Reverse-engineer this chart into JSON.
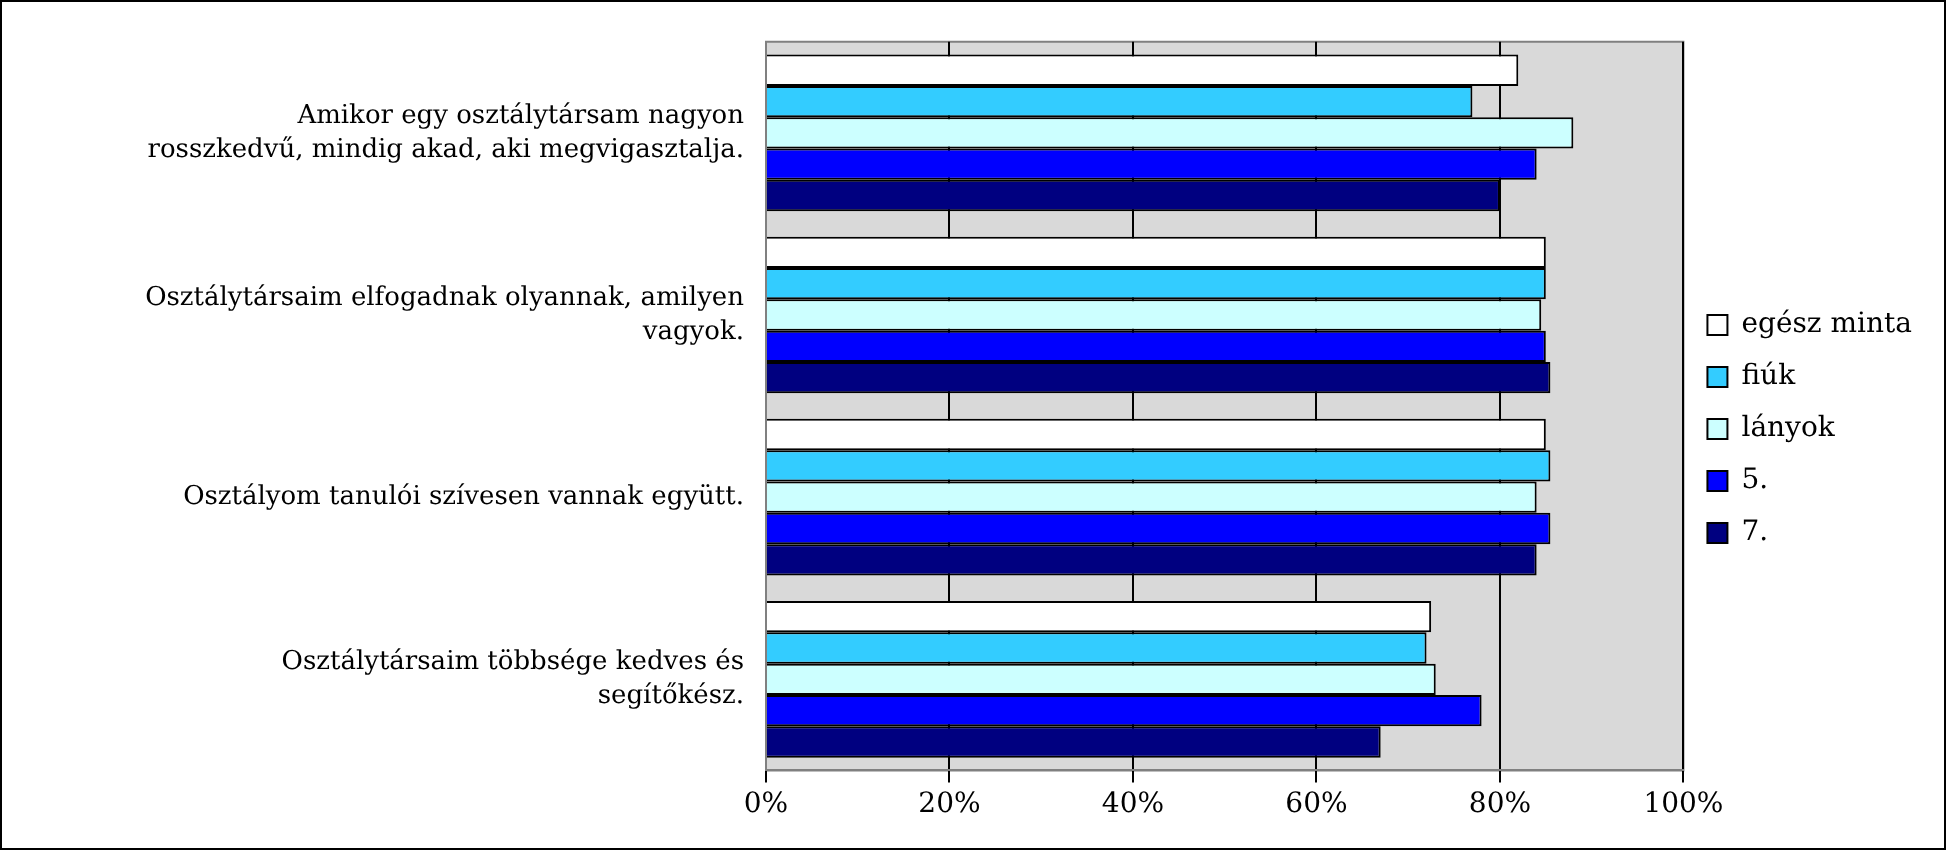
{
  "chart_data": {
    "type": "bar",
    "orientation": "horizontal",
    "categories": [
      "Amikor egy osztálytársam nagyon rosszkedvű, mindig akad, aki megvigasztalja.",
      "Osztálytársaim elfogadnak olyannak, amilyen vagyok.",
      "Osztályom tanulói szívesen vannak együtt.",
      "Osztálytársaim többsége kedves és segítőkész."
    ],
    "series": [
      {
        "name": "egész minta",
        "color": "#ffffff",
        "values": [
          82,
          85,
          85,
          72.5
        ]
      },
      {
        "name": "fiúk",
        "color": "#33ccff",
        "values": [
          77,
          85,
          85.5,
          72
        ]
      },
      {
        "name": "lányok",
        "color": "#ccffff",
        "values": [
          88,
          84.5,
          84,
          73
        ]
      },
      {
        "name": "5.",
        "color": "#0000ff",
        "values": [
          84,
          85,
          85.5,
          78
        ]
      },
      {
        "name": "7.",
        "color": "#000080",
        "values": [
          80,
          85.5,
          84,
          67
        ]
      }
    ],
    "xlim": [
      0,
      100
    ],
    "xticks": [
      {
        "value": 0,
        "label": "0%"
      },
      {
        "value": 20,
        "label": "20%"
      },
      {
        "value": 40,
        "label": "40%"
      },
      {
        "value": 60,
        "label": "60%"
      },
      {
        "value": 80,
        "label": "80%"
      },
      {
        "value": 100,
        "label": "100%"
      }
    ],
    "grid": "x",
    "legend": "right"
  }
}
